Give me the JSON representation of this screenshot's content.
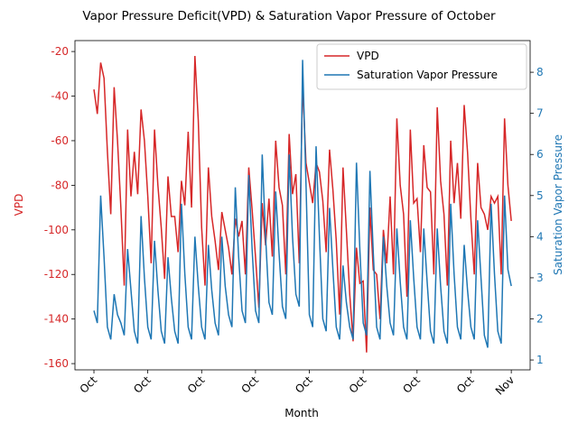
{
  "chart_data": {
    "type": "line",
    "title": "Vapor Pressure Deficit(VPD) & Saturation Vapor Pressure of October",
    "xlabel": "Month",
    "ylabel": "VPD",
    "y2label": "Saturation Vapor Pressure",
    "legend": "upper right",
    "xlim": [
      -1.41,
      32.4
    ],
    "xticks": [
      {
        "value": 0,
        "label": "Oct"
      },
      {
        "value": 4,
        "label": "Oct"
      },
      {
        "value": 8,
        "label": "Oct"
      },
      {
        "value": 12,
        "label": "Oct"
      },
      {
        "value": 16,
        "label": "Oct"
      },
      {
        "value": 20,
        "label": "Oct"
      },
      {
        "value": 24,
        "label": "Oct"
      },
      {
        "value": 28,
        "label": "Oct"
      },
      {
        "value": 31,
        "label": "Nov"
      }
    ],
    "ylim": [
      -162.8,
      -15.1
    ],
    "yticks": [
      -160,
      -140,
      -120,
      -100,
      -80,
      -60,
      -40,
      -20
    ],
    "y2lim": [
      0.76,
      8.77
    ],
    "y2ticks": [
      1,
      2,
      3,
      4,
      5,
      6,
      7,
      8
    ],
    "x": [
      0,
      0.25,
      0.5,
      0.75,
      1,
      1.25,
      1.5,
      1.75,
      2,
      2.25,
      2.5,
      2.75,
      3,
      3.25,
      3.5,
      3.75,
      4,
      4.25,
      4.5,
      4.75,
      5,
      5.25,
      5.5,
      5.75,
      6,
      6.25,
      6.5,
      6.75,
      7,
      7.25,
      7.5,
      7.75,
      8,
      8.25,
      8.5,
      8.75,
      9,
      9.25,
      9.5,
      9.75,
      10,
      10.25,
      10.5,
      10.75,
      11,
      11.25,
      11.5,
      11.75,
      12,
      12.25,
      12.5,
      12.75,
      13,
      13.25,
      13.5,
      13.75,
      14,
      14.25,
      14.5,
      14.75,
      15,
      15.25,
      15.5,
      15.75,
      16,
      16.25,
      16.5,
      16.75,
      17,
      17.25,
      17.5,
      17.75,
      18,
      18.25,
      18.5,
      18.75,
      19,
      19.25,
      19.5,
      19.75,
      20,
      20.25,
      20.5,
      20.75,
      21,
      21.25,
      21.5,
      21.75,
      22,
      22.25,
      22.5,
      22.75,
      23,
      23.25,
      23.5,
      23.75,
      24,
      24.25,
      24.5,
      24.75,
      25,
      25.25,
      25.5,
      25.75,
      26,
      26.25,
      26.5,
      26.75,
      27,
      27.25,
      27.5,
      27.75,
      28,
      28.25,
      28.5,
      28.75,
      29,
      29.25,
      29.5,
      29.75,
      30,
      30.25,
      30.5,
      30.75,
      31
    ],
    "series": [
      {
        "name": "VPD",
        "color": "#d62728",
        "axis": "y",
        "values": [
          -37,
          -48,
          -25,
          -32,
          -65,
          -93,
          -36,
          -60,
          -90,
          -125,
          -55,
          -85,
          -65,
          -84,
          -46,
          -60,
          -85,
          -115,
          -55,
          -80,
          -99,
          -122,
          -76,
          -94,
          -94,
          -110,
          -78,
          -89,
          -56,
          -90,
          -22,
          -51,
          -99,
          -125,
          -72,
          -94,
          -105,
          -118,
          -92,
          -100,
          -108,
          -120,
          -95,
          -103,
          -96,
          -120,
          -72,
          -91,
          -112,
          -135,
          -88,
          -107,
          -86,
          -112,
          -60,
          -81,
          -89,
          -120,
          -57,
          -84,
          -75,
          -115,
          -34,
          -70,
          -79,
          -88,
          -70,
          -74,
          -87,
          -110,
          -64,
          -82,
          -105,
          -138,
          -72,
          -100,
          -129,
          -150,
          -108,
          -124,
          -123,
          -155,
          -90,
          -118,
          -120,
          -140,
          -100,
          -115,
          -85,
          -120,
          -50,
          -80,
          -93,
          -130,
          -55,
          -88,
          -86,
          -110,
          -62,
          -81,
          -83,
          -120,
          -45,
          -78,
          -93,
          -125,
          -60,
          -88,
          -70,
          -95,
          -44,
          -65,
          -95,
          -120,
          -70,
          -90,
          -93,
          -100,
          -85,
          -88,
          -85,
          -120,
          -50,
          -80,
          -96
        ]
      },
      {
        "name": "Saturation Vapor Pressure",
        "color": "#1f77b4",
        "axis": "y2",
        "values": [
          2.2,
          1.9,
          5.0,
          3.5,
          1.8,
          1.5,
          2.6,
          2.1,
          1.9,
          1.6,
          3.7,
          2.7,
          1.7,
          1.4,
          4.5,
          3.0,
          1.8,
          1.5,
          3.9,
          2.7,
          1.7,
          1.4,
          3.5,
          2.5,
          1.7,
          1.4,
          4.8,
          3.1,
          1.8,
          1.5,
          4.0,
          2.8,
          1.8,
          1.5,
          3.8,
          2.7,
          1.9,
          1.6,
          4.0,
          2.8,
          2.1,
          1.8,
          5.2,
          3.5,
          2.2,
          1.9,
          5.5,
          3.7,
          2.2,
          1.9,
          6.0,
          4.0,
          2.4,
          2.1,
          5.1,
          3.6,
          2.3,
          2.0,
          6.0,
          4.0,
          2.6,
          2.3,
          8.3,
          5.3,
          2.1,
          1.8,
          6.2,
          4.0,
          2.0,
          1.7,
          4.7,
          3.2,
          1.8,
          1.5,
          3.3,
          2.4,
          1.8,
          1.5,
          5.8,
          3.7,
          1.9,
          1.6,
          5.6,
          3.6,
          1.8,
          1.5,
          4.0,
          2.8,
          1.9,
          1.6,
          4.2,
          2.9,
          1.8,
          1.5,
          4.4,
          3.0,
          1.8,
          1.5,
          4.2,
          2.9,
          1.7,
          1.4,
          4.2,
          2.8,
          1.7,
          1.4,
          4.8,
          3.1,
          1.8,
          1.5,
          3.8,
          2.7,
          1.8,
          1.5,
          4.4,
          3.0,
          1.6,
          1.3,
          4.8,
          3.1,
          1.7,
          1.4,
          5.0,
          3.2,
          2.8
        ]
      }
    ]
  }
}
